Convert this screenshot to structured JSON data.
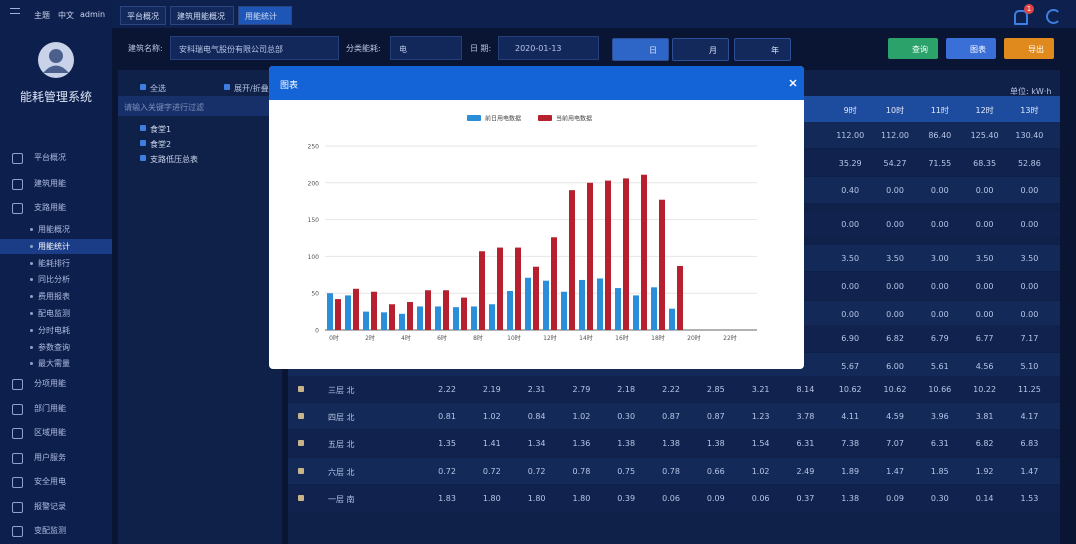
{
  "sidebar": {
    "title": "能耗管理系统",
    "menu_top": [
      "平台概况",
      "建筑用能",
      "支路用能"
    ],
    "submenu": [
      "用能概况",
      "用能统计",
      "能耗排行",
      "同比分析",
      "费用报表",
      "配电监测",
      "分时电耗",
      "参数查询",
      "最大需量"
    ],
    "menu_bottom": [
      "分项用能",
      "部门用能",
      "区域用能",
      "用户服务",
      "安全用电",
      "报警记录",
      "变配监测"
    ]
  },
  "topbar": {
    "theme": "主题",
    "lang": "中文",
    "user": "admin",
    "badge": "1",
    "tabs": [
      "平台概况",
      "建筑用能概况",
      "用能统计"
    ]
  },
  "filters": {
    "building_label": "建筑名称:",
    "building": "安科瑞电气股份有限公司总部",
    "category_label": "分类能耗:",
    "category": "电",
    "date_label": "日 期:",
    "date": "2020-01-13",
    "periods": [
      "日",
      "月",
      "年"
    ],
    "buttons": [
      "查询",
      "图表",
      "导出"
    ]
  },
  "tree": {
    "select_all": "全选",
    "expand": "展开/折叠",
    "search_placeholder": "请输入关键字进行过滤",
    "nodes": [
      "食堂1",
      "食堂2",
      "支路低压总表"
    ]
  },
  "table": {
    "unit": "单位: kW·h",
    "header": [
      "9时",
      "10时",
      "11时",
      "12时",
      "13时"
    ],
    "upper_rows": [
      [
        "112.00",
        "112.00",
        "86.40",
        "125.40",
        "130.40"
      ],
      [
        "35.29",
        "54.27",
        "71.55",
        "68.35",
        "52.86"
      ],
      [
        "0.40",
        "0.00",
        "0.00",
        "0.00",
        "0.00"
      ],
      [
        "0.00",
        "0.00",
        "0.00",
        "0.00",
        "0.00"
      ],
      [
        "3.50",
        "3.50",
        "3.00",
        "3.50",
        "3.50"
      ],
      [
        "0.00",
        "0.00",
        "0.00",
        "0.00",
        "0.00"
      ],
      [
        "0.00",
        "0.00",
        "0.00",
        "0.00",
        "0.00"
      ],
      [
        "6.90",
        "6.82",
        "6.79",
        "6.77",
        "7.17"
      ],
      [
        "5.67",
        "6.00",
        "5.61",
        "4.56",
        "5.10"
      ]
    ],
    "rows": [
      {
        "name": "三层 北",
        "values": [
          "2.22",
          "2.19",
          "2.31",
          "2.79",
          "2.18",
          "2.22",
          "2.85",
          "3.21",
          "8.14",
          "10.62",
          "10.62",
          "10.66",
          "10.22",
          "11.25"
        ]
      },
      {
        "name": "四层 北",
        "values": [
          "0.81",
          "1.02",
          "0.84",
          "1.02",
          "0.30",
          "0.87",
          "0.87",
          "1.23",
          "3.78",
          "4.11",
          "4.59",
          "3.96",
          "3.81",
          "4.17"
        ]
      },
      {
        "name": "五层 北",
        "values": [
          "1.35",
          "1.41",
          "1.34",
          "1.36",
          "1.38",
          "1.38",
          "1.38",
          "1.54",
          "6.31",
          "7.38",
          "7.07",
          "6.31",
          "6.82",
          "6.83"
        ]
      },
      {
        "name": "六层 北",
        "values": [
          "0.72",
          "0.72",
          "0.72",
          "0.78",
          "0.75",
          "0.78",
          "0.66",
          "1.02",
          "2.49",
          "1.89",
          "1.47",
          "1.85",
          "1.92",
          "1.47"
        ]
      },
      {
        "name": "一层 南",
        "values": [
          "1.83",
          "1.80",
          "1.80",
          "1.80",
          "0.39",
          "0.06",
          "0.09",
          "0.06",
          "0.37",
          "1.38",
          "0.09",
          "0.30",
          "0.14",
          "1.53"
        ]
      }
    ]
  },
  "modal": {
    "title": "图表"
  },
  "chart_data": {
    "type": "bar",
    "categories": [
      "0时",
      null,
      "2时",
      null,
      "4时",
      null,
      "6时",
      null,
      "8时",
      null,
      "10时",
      null,
      "12时",
      null,
      "14时",
      null,
      "16时",
      null,
      "18时",
      null,
      "20时",
      null,
      "22时",
      null
    ],
    "series": [
      {
        "name": "前日用电数据",
        "color": "#2a8fd8",
        "values": [
          50,
          47,
          25,
          24,
          22,
          32,
          32,
          31,
          32,
          35,
          53,
          71,
          67,
          52,
          68,
          70,
          57,
          47,
          58,
          29,
          null,
          null,
          null,
          null
        ]
      },
      {
        "name": "当前用电数据",
        "color": "#b7202e",
        "values": [
          42,
          56,
          52,
          35,
          38,
          54,
          54,
          44,
          107,
          112,
          112,
          86,
          126,
          190,
          200,
          203,
          206,
          211,
          177,
          87,
          null,
          null,
          null,
          null
        ]
      }
    ],
    "ylim": [
      0,
      250
    ],
    "yticks": [
      0,
      50,
      100,
      150,
      200,
      250
    ],
    "grid": true
  }
}
